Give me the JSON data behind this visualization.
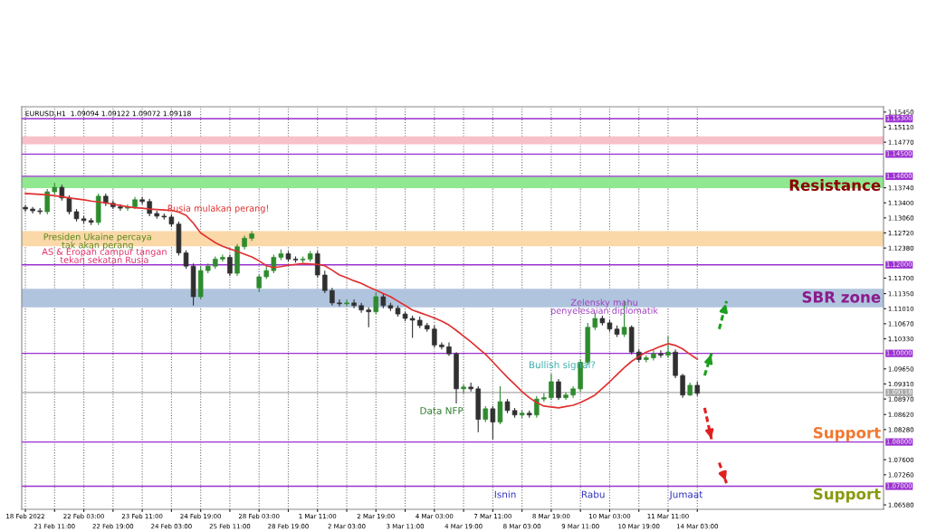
{
  "chart_data": {
    "type": "candlestick",
    "annotations": [
      "EURUSD,H1  1.09094 1.09122 1.09072 1.09118",
      "Rusia mulakan perang!",
      "Presiden Ukaine percaya\ntak akan perang",
      "AS & Eropah campur tangan\ntekan sekatan Rusia",
      "Zelensky mahu\npenyelesaian diplomatik",
      "Bullish signal?",
      "Data NFP",
      "Isnin",
      "Rabu",
      "Jumaat",
      "Resistance",
      "SBR zone",
      "Support",
      "Support"
    ],
    "categories": [
      "18 Feb 2022",
      null,
      null,
      null,
      "21 Feb 11:00",
      null,
      null,
      null,
      "22 Feb 03:00",
      null,
      null,
      null,
      "22 Feb 19:00",
      null,
      null,
      null,
      "23 Feb 11:00",
      null,
      null,
      null,
      "24 Feb 03:00",
      null,
      null,
      null,
      "24 Feb 19:00",
      null,
      null,
      null,
      "25 Feb 11:00",
      null,
      null,
      null,
      "28 Feb 03:00",
      null,
      null,
      null,
      "28 Feb 19:00",
      null,
      null,
      null,
      "1 Mar 11:00",
      null,
      null,
      null,
      "2 Mar 03:00",
      null,
      null,
      null,
      "2 Mar 19:00",
      null,
      null,
      null,
      "3 Mar 11:00",
      null,
      null,
      null,
      "4 Mar 03:00",
      null,
      null,
      null,
      "4 Mar 19:00",
      null,
      null,
      null,
      "7 Mar 11:00",
      null,
      null,
      null,
      "8 Mar 03:00",
      null,
      null,
      null,
      "8 Mar 19:00",
      null,
      null,
      null,
      "9 Mar 11:00",
      null,
      null,
      null,
      "10 Mar 03:00",
      null,
      null,
      null,
      "10 Mar 19:00",
      null,
      null,
      null,
      "11 Mar 11:00",
      null,
      null,
      null,
      "14 Mar 03:00",
      null,
      null,
      null,
      null,
      null,
      null,
      null,
      null,
      null,
      null,
      null,
      null,
      null,
      null,
      null,
      null,
      null,
      null,
      null,
      null,
      null,
      null,
      null,
      null,
      null
    ],
    "grid": "x",
    "ylim": [
      1.0648,
      1.1557
    ],
    "yticks": [
      {
        "value": 1.1545,
        "label": "1.15450"
      },
      {
        "value": 1.1511,
        "label": "1.15110"
      },
      {
        "value": 1.1477,
        "label": "1.14770"
      },
      {
        "value": 1.1374,
        "label": "1.13740"
      },
      {
        "value": 1.134,
        "label": "1.13400"
      },
      {
        "value": 1.1306,
        "label": "1.13060"
      },
      {
        "value": 1.1272,
        "label": "1.12720"
      },
      {
        "value": 1.1238,
        "label": "1.12380"
      },
      {
        "value": 1.117,
        "label": "1.11700"
      },
      {
        "value": 1.1135,
        "label": "1.11350"
      },
      {
        "value": 1.1101,
        "label": "1.11010"
      },
      {
        "value": 1.1067,
        "label": "1.10670"
      },
      {
        "value": 1.1033,
        "label": "1.10330"
      },
      {
        "value": 1.0965,
        "label": "1.09650"
      },
      {
        "value": 1.0931,
        "label": "1.09310"
      },
      {
        "value": 1.0897,
        "label": "1.08970"
      },
      {
        "value": 1.0862,
        "label": "1.08620"
      },
      {
        "value": 1.0828,
        "label": "1.08280"
      },
      {
        "value": 1.076,
        "label": "1.07600"
      },
      {
        "value": 1.0726,
        "label": "1.07260"
      },
      {
        "value": 1.0658,
        "label": "1.06580"
      }
    ],
    "bands": [
      {
        "axis": "y",
        "from": 1.1472,
        "to": 1.149,
        "color": "#f8c0c8"
      },
      {
        "axis": "y",
        "from": 1.1373,
        "to": 1.1399,
        "color": "#90e890"
      },
      {
        "axis": "y",
        "from": 1.1242,
        "to": 1.1276,
        "color": "#fad8a8"
      },
      {
        "axis": "y",
        "from": 1.1104,
        "to": 1.1146,
        "color": "#b0c4de"
      }
    ],
    "ref_lines": [
      {
        "axis": "y",
        "value": 1.153,
        "label": "1.15300",
        "color": "#9b30d0"
      },
      {
        "axis": "y",
        "value": 1.145,
        "label": "1.14500",
        "color": "#9b30d0"
      },
      {
        "axis": "y",
        "value": 1.14,
        "label": "1.14000",
        "color": "#9b30d0"
      },
      {
        "axis": "y",
        "value": 1.12,
        "label": "1.12000",
        "color": "#9b30d0"
      },
      {
        "axis": "y",
        "value": 1.1,
        "label": "1.10000",
        "color": "#9b30d0"
      },
      {
        "axis": "y",
        "value": 1.08,
        "label": "1.08000",
        "color": "#9b30d0"
      },
      {
        "axis": "y",
        "value": 1.07,
        "label": "1.07000",
        "color": "#9b30d0"
      },
      {
        "axis": "y",
        "value": 1.09118,
        "label": "1.09118",
        "color": "#a8a8a8"
      }
    ],
    "series": [
      {
        "ohlc": [
          [
            1.133,
            1.1335,
            1.132,
            1.1326
          ],
          [
            1.1326,
            1.1331,
            1.1316,
            1.1322
          ],
          [
            1.1322,
            1.1328,
            1.1314,
            1.132
          ],
          [
            1.132,
            1.1371,
            1.1314,
            1.1365
          ],
          [
            1.1365,
            1.1385,
            1.1359,
            1.1375
          ],
          [
            1.1375,
            1.1381,
            1.1345,
            1.1351
          ],
          [
            1.1351,
            1.1357,
            1.1314,
            1.132
          ],
          [
            1.132,
            1.1326,
            1.1298,
            1.1304
          ],
          [
            1.1304,
            1.131,
            1.1294,
            1.13
          ],
          [
            1.13,
            1.1306,
            1.129,
            1.1296
          ],
          [
            1.1296,
            1.1361,
            1.129,
            1.1355
          ],
          [
            1.1355,
            1.1361,
            1.1333,
            1.1339
          ],
          [
            1.1339,
            1.1345,
            1.1326,
            1.1331
          ],
          [
            1.1331,
            1.1337,
            1.1322,
            1.1328
          ],
          [
            1.1328,
            1.1337,
            1.1322,
            1.1331
          ],
          [
            1.1331,
            1.1353,
            1.1326,
            1.1347
          ],
          [
            1.1347,
            1.1353,
            1.1337,
            1.1343
          ],
          [
            1.1343,
            1.1349,
            1.131,
            1.1316
          ],
          [
            1.1316,
            1.1322,
            1.1304,
            1.131
          ],
          [
            1.131,
            1.1316,
            1.1302,
            1.1308
          ],
          [
            1.1308,
            1.1314,
            1.1286,
            1.1292
          ],
          [
            1.1292,
            1.1298,
            1.1221,
            1.1227
          ],
          [
            1.1227,
            1.1233,
            1.1191,
            1.1197
          ],
          [
            1.1197,
            1.1203,
            1.1108,
            1.1128
          ],
          [
            1.1128,
            1.1197,
            1.1122,
            1.1187
          ],
          [
            1.1187,
            1.1203,
            1.1181,
            1.1197
          ],
          [
            1.1197,
            1.1219,
            1.1191,
            1.1213
          ],
          [
            1.1213,
            1.1223,
            1.1207,
            1.1217
          ],
          [
            1.1217,
            1.1223,
            1.1175,
            1.1181
          ],
          [
            1.1181,
            1.1247,
            1.1175,
            1.1241
          ],
          [
            1.1241,
            1.1266,
            1.1235,
            1.126
          ],
          [
            1.126,
            1.1276,
            1.1254,
            1.127
          ],
          [
            1.1148,
            1.1177,
            1.1138,
            1.1173
          ],
          [
            1.1173,
            1.1197,
            1.1168,
            1.1187
          ],
          [
            1.1187,
            1.1223,
            1.1181,
            1.1217
          ],
          [
            1.1217,
            1.1235,
            1.1211,
            1.1225
          ],
          [
            1.1225,
            1.1231,
            1.1207,
            1.1213
          ],
          [
            1.1213,
            1.1219,
            1.1205,
            1.1211
          ],
          [
            1.1211,
            1.1219,
            1.1205,
            1.1213
          ],
          [
            1.1213,
            1.1231,
            1.1207,
            1.1225
          ],
          [
            1.1225,
            1.1231,
            1.1171,
            1.1177
          ],
          [
            1.1177,
            1.1187,
            1.1136,
            1.1142
          ],
          [
            1.1142,
            1.1148,
            1.1108,
            1.1114
          ],
          [
            1.1114,
            1.1122,
            1.1106,
            1.1112
          ],
          [
            1.1112,
            1.1122,
            1.1106,
            1.1114
          ],
          [
            1.1114,
            1.1122,
            1.1102,
            1.1108
          ],
          [
            1.1108,
            1.1114,
            1.1092,
            1.1098
          ],
          [
            1.1098,
            1.1104,
            1.1059,
            1.1094
          ],
          [
            1.1094,
            1.1138,
            1.1089,
            1.1128
          ],
          [
            1.1128,
            1.1134,
            1.1102,
            1.1108
          ],
          [
            1.1108,
            1.1114,
            1.1096,
            1.1102
          ],
          [
            1.1102,
            1.1108,
            1.1083,
            1.1089
          ],
          [
            1.1089,
            1.1094,
            1.1073,
            1.1079
          ],
          [
            1.1079,
            1.1085,
            1.1035,
            1.1075
          ],
          [
            1.1075,
            1.1083,
            1.1057,
            1.1063
          ],
          [
            1.1063,
            1.1069,
            1.1049,
            1.1055
          ],
          [
            1.1055,
            1.1063,
            1.1013,
            1.1019
          ],
          [
            1.1019,
            1.1025,
            1.1009,
            1.1015
          ],
          [
            1.1015,
            1.1025,
            1.0994,
            1.0999
          ],
          [
            1.0999,
            1.1003,
            1.0887,
            1.092
          ],
          [
            1.092,
            1.093,
            1.091,
            1.0924
          ],
          [
            1.0924,
            1.0934,
            1.0914,
            1.092
          ],
          [
            1.092,
            1.0926,
            1.0822,
            1.0851
          ],
          [
            1.0851,
            1.0881,
            1.0845,
            1.0875
          ],
          [
            1.0875,
            1.0881,
            1.0806,
            1.0845
          ],
          [
            1.0845,
            1.0926,
            1.084,
            1.0891
          ],
          [
            1.0891,
            1.0897,
            1.0865,
            1.0871
          ],
          [
            1.0871,
            1.0877,
            1.0855,
            1.0861
          ],
          [
            1.0861,
            1.0871,
            1.0855,
            1.0865
          ],
          [
            1.0865,
            1.0871,
            1.0855,
            1.0861
          ],
          [
            1.0861,
            1.0904,
            1.0855,
            1.0897
          ],
          [
            1.0897,
            1.091,
            1.0891,
            1.09
          ],
          [
            1.09,
            1.0954,
            1.0895,
            1.0936
          ],
          [
            1.0936,
            1.0942,
            1.0895,
            1.09
          ],
          [
            1.09,
            1.0912,
            1.0895,
            1.0906
          ],
          [
            1.0906,
            1.0926,
            1.09,
            1.092
          ],
          [
            1.092,
            1.0986,
            1.0914,
            1.098
          ],
          [
            1.098,
            1.1069,
            1.0974,
            1.1059
          ],
          [
            1.1059,
            1.1092,
            1.1053,
            1.1079
          ],
          [
            1.1079,
            1.1085,
            1.1063,
            1.1069
          ],
          [
            1.1069,
            1.1075,
            1.1049,
            1.1055
          ],
          [
            1.1055,
            1.1063,
            1.1037,
            1.1043
          ],
          [
            1.1043,
            1.1118,
            1.1037,
            1.1059
          ],
          [
            1.1059,
            1.1063,
            1.0998,
            1.1003
          ],
          [
            1.1003,
            1.1009,
            1.098,
            1.0986
          ],
          [
            1.0986,
            1.0996,
            1.098,
            1.099
          ],
          [
            1.099,
            1.1007,
            1.0984,
            1.0999
          ],
          [
            1.0999,
            1.1007,
            1.099,
            1.0996
          ],
          [
            1.0996,
            1.1039,
            1.099,
            1.1003
          ],
          [
            1.1003,
            1.1009,
            1.0944,
            1.095
          ],
          [
            1.095,
            1.0954,
            1.09,
            1.0906
          ],
          [
            1.0906,
            1.0934,
            1.0904,
            1.0928
          ],
          [
            1.0928,
            1.0936,
            1.0904,
            1.091
          ],
          null,
          null,
          null,
          null,
          null,
          null,
          null,
          null,
          null,
          null,
          null,
          null,
          null,
          null,
          null,
          null,
          null,
          null,
          null,
          null,
          null,
          null,
          null,
          null,
          null
        ],
        "colors": [
          "#303030",
          "#303030",
          "#303030",
          "#2e8b2e",
          "#2e8b2e",
          "#303030",
          "#303030",
          "#303030",
          "#303030",
          "#303030",
          "#2e8b2e",
          "#303030",
          "#303030",
          "#303030",
          "#2e8b2e",
          "#2e8b2e",
          "#303030",
          "#303030",
          "#303030",
          "#303030",
          "#303030",
          "#303030",
          "#303030",
          "#303030",
          "#2e8b2e",
          "#2e8b2e",
          "#2e8b2e",
          "#2e8b2e",
          "#303030",
          "#2e8b2e",
          "#2e8b2e",
          "#2e8b2e",
          "#2e8b2e",
          "#2e8b2e",
          "#2e8b2e",
          "#2e8b2e",
          "#303030",
          "#303030",
          "#2e8b2e",
          "#2e8b2e",
          "#303030",
          "#303030",
          "#303030",
          "#303030",
          "#2e8b2e",
          "#303030",
          "#303030",
          "#303030",
          "#2e8b2e",
          "#303030",
          "#303030",
          "#303030",
          "#303030",
          "#303030",
          "#303030",
          "#303030",
          "#303030",
          "#303030",
          "#303030",
          "#303030",
          "#2e8b2e",
          "#303030",
          "#303030",
          "#2e8b2e",
          "#303030",
          "#2e8b2e",
          "#303030",
          "#303030",
          "#2e8b2e",
          "#303030",
          "#2e8b2e",
          "#2e8b2e",
          "#2e8b2e",
          "#303030",
          "#2e8b2e",
          "#2e8b2e",
          "#2e8b2e",
          "#2e8b2e",
          "#2e8b2e",
          "#303030",
          "#303030",
          "#303030",
          "#2e8b2e",
          "#303030",
          "#303030",
          "#2e8b2e",
          "#2e8b2e",
          "#303030",
          "#2e8b2e",
          "#303030",
          "#303030",
          "#2e8b2e",
          "#303030",
          null,
          null,
          null,
          null,
          null,
          null,
          null,
          null,
          null,
          null,
          null,
          null,
          null,
          null,
          null,
          null,
          null,
          null,
          null,
          null,
          null,
          null,
          null,
          null,
          null
        ]
      },
      {
        "type": "line",
        "color": "#e03030",
        "line_style": "solid",
        "values": [
          1.1361,
          1.136,
          1.1359,
          1.1358,
          1.1356,
          1.1354,
          1.1351,
          1.1349,
          1.1347,
          1.1344,
          1.1342,
          1.134,
          1.1337,
          1.1334,
          1.1331,
          1.1329,
          1.1328,
          1.1326,
          1.1325,
          1.1324,
          1.1323,
          1.1319,
          1.1312,
          1.1294,
          1.1272,
          1.1261,
          1.125,
          1.1242,
          1.1236,
          1.123,
          1.1224,
          1.1218,
          1.1209,
          1.1198,
          1.1194,
          1.1196,
          1.1199,
          1.1201,
          1.1203,
          1.1202,
          1.1201,
          1.1198,
          1.1188,
          1.1177,
          1.1171,
          1.1164,
          1.1158,
          1.115,
          1.1143,
          1.1135,
          1.1128,
          1.1118,
          1.1108,
          1.1098,
          1.1092,
          1.1086,
          1.108,
          1.1073,
          1.1064,
          1.1052,
          1.1039,
          1.1026,
          1.1012,
          1.0998,
          1.0981,
          1.0963,
          1.0946,
          1.093,
          1.0914,
          1.09,
          1.0889,
          1.0881,
          1.0879,
          1.0877,
          1.088,
          1.0883,
          1.0889,
          1.0897,
          1.0906,
          1.0921,
          1.0936,
          1.0952,
          1.0968,
          1.0982,
          1.0993,
          1.1003,
          1.1009,
          1.1016,
          1.1022,
          1.1018,
          1.101,
          1.0998,
          1.0987,
          null,
          null,
          null,
          null,
          null,
          null,
          null,
          null,
          null,
          null,
          null,
          null,
          null,
          null,
          null,
          null,
          null,
          null,
          null,
          null,
          null,
          null,
          null,
          null,
          null
        ]
      },
      {
        "type": "line",
        "color": "#1e9e1e",
        "line_style": "dashed",
        "values": [
          null,
          null,
          null,
          null,
          null,
          null,
          null,
          null,
          null,
          null,
          null,
          null,
          null,
          null,
          null,
          null,
          null,
          null,
          null,
          null,
          null,
          null,
          null,
          null,
          null,
          null,
          null,
          null,
          null,
          null,
          null,
          null,
          null,
          null,
          null,
          null,
          null,
          null,
          null,
          null,
          null,
          null,
          null,
          null,
          null,
          null,
          null,
          null,
          null,
          null,
          null,
          null,
          null,
          null,
          null,
          null,
          null,
          null,
          null,
          null,
          null,
          null,
          null,
          null,
          null,
          null,
          null,
          null,
          null,
          null,
          null,
          null,
          null,
          null,
          null,
          null,
          null,
          null,
          null,
          null,
          null,
          null,
          null,
          null,
          null,
          null,
          null,
          null,
          null,
          null,
          null,
          null,
          null,
          1.095,
          1.1003,
          null,
          null,
          null,
          null,
          null,
          null,
          null,
          null,
          null,
          null,
          null,
          null,
          null,
          null,
          null,
          null,
          null,
          null,
          null,
          null,
          null,
          null,
          null
        ]
      },
      {
        "type": "line",
        "color": "#1e9e1e",
        "line_style": "dashed",
        "values": [
          null,
          null,
          null,
          null,
          null,
          null,
          null,
          null,
          null,
          null,
          null,
          null,
          null,
          null,
          null,
          null,
          null,
          null,
          null,
          null,
          null,
          null,
          null,
          null,
          null,
          null,
          null,
          null,
          null,
          null,
          null,
          null,
          null,
          null,
          null,
          null,
          null,
          null,
          null,
          null,
          null,
          null,
          null,
          null,
          null,
          null,
          null,
          null,
          null,
          null,
          null,
          null,
          null,
          null,
          null,
          null,
          null,
          null,
          null,
          null,
          null,
          null,
          null,
          null,
          null,
          null,
          null,
          null,
          null,
          null,
          null,
          null,
          null,
          null,
          null,
          null,
          null,
          null,
          null,
          null,
          null,
          null,
          null,
          null,
          null,
          null,
          null,
          null,
          null,
          null,
          null,
          null,
          null,
          null,
          null,
          1.1055,
          1.1118,
          null,
          null,
          null,
          null,
          null,
          null,
          null,
          null,
          null,
          null,
          null,
          null,
          null,
          null,
          null,
          null,
          null,
          null,
          null,
          null,
          null
        ]
      },
      {
        "type": "line",
        "color": "#e02020",
        "line_style": "dashed",
        "values": [
          null,
          null,
          null,
          null,
          null,
          null,
          null,
          null,
          null,
          null,
          null,
          null,
          null,
          null,
          null,
          null,
          null,
          null,
          null,
          null,
          null,
          null,
          null,
          null,
          null,
          null,
          null,
          null,
          null,
          null,
          null,
          null,
          null,
          null,
          null,
          null,
          null,
          null,
          null,
          null,
          null,
          null,
          null,
          null,
          null,
          null,
          null,
          null,
          null,
          null,
          null,
          null,
          null,
          null,
          null,
          null,
          null,
          null,
          null,
          null,
          null,
          null,
          null,
          null,
          null,
          null,
          null,
          null,
          null,
          null,
          null,
          null,
          null,
          null,
          null,
          null,
          null,
          null,
          null,
          null,
          null,
          null,
          null,
          null,
          null,
          null,
          null,
          null,
          null,
          null,
          null,
          null,
          null,
          1.0877,
          1.0802,
          null,
          null,
          null,
          null,
          null,
          null,
          null,
          null,
          null,
          null,
          null,
          null,
          null,
          null,
          null,
          null,
          null,
          null,
          null,
          null,
          null,
          null,
          null
        ]
      },
      {
        "type": "line",
        "color": "#e02020",
        "line_style": "dashed",
        "values": [
          null,
          null,
          null,
          null,
          null,
          null,
          null,
          null,
          null,
          null,
          null,
          null,
          null,
          null,
          null,
          null,
          null,
          null,
          null,
          null,
          null,
          null,
          null,
          null,
          null,
          null,
          null,
          null,
          null,
          null,
          null,
          null,
          null,
          null,
          null,
          null,
          null,
          null,
          null,
          null,
          null,
          null,
          null,
          null,
          null,
          null,
          null,
          null,
          null,
          null,
          null,
          null,
          null,
          null,
          null,
          null,
          null,
          null,
          null,
          null,
          null,
          null,
          null,
          null,
          null,
          null,
          null,
          null,
          null,
          null,
          null,
          null,
          null,
          null,
          null,
          null,
          null,
          null,
          null,
          null,
          null,
          null,
          null,
          null,
          null,
          null,
          null,
          null,
          null,
          null,
          null,
          null,
          null,
          null,
          null,
          1.0753,
          1.0707,
          null,
          null,
          null,
          null,
          null,
          null,
          null,
          null,
          null,
          null,
          null,
          null,
          null,
          null,
          null,
          null,
          null,
          null,
          null,
          null,
          null
        ]
      }
    ]
  }
}
